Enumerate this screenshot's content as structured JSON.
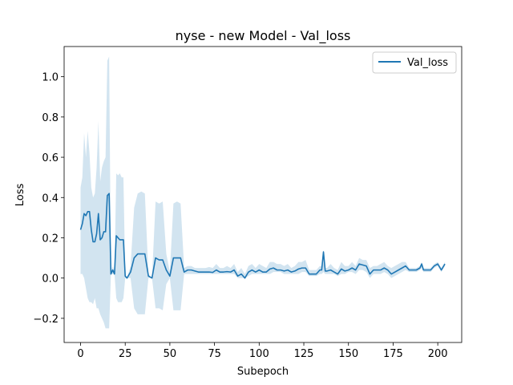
{
  "chart_data": {
    "type": "line",
    "title": "nyse - new Model - Val_loss",
    "xlabel": "Subepoch",
    "ylabel": "Loss",
    "xlim": [
      -9.2,
      213.4
    ],
    "ylim": [
      -0.32,
      1.15
    ],
    "xticks": [
      0,
      25,
      50,
      75,
      100,
      125,
      150,
      175,
      200
    ],
    "yticks": [
      -0.2,
      0.0,
      0.2,
      0.4,
      0.6,
      0.8,
      1.0
    ],
    "ytick_labels": [
      "−0.2",
      "0.0",
      "0.2",
      "0.4",
      "0.6",
      "0.8",
      "1.0"
    ],
    "grid": false,
    "legend": {
      "position": "top-right",
      "entries": [
        "Val_loss"
      ]
    },
    "colors": {
      "line": "#1f77b4",
      "band": "#1f77b4"
    },
    "series": [
      {
        "name": "Val_loss",
        "x": [
          0,
          1,
          2,
          3,
          4,
          5,
          6,
          7,
          8,
          9,
          10,
          11,
          12,
          13,
          14,
          15,
          16,
          17,
          18,
          19,
          20,
          21,
          22,
          23,
          24,
          25,
          26,
          28,
          30,
          32,
          34,
          36,
          38,
          40,
          42,
          44,
          46,
          48,
          50,
          52,
          54,
          56,
          58,
          60,
          62,
          64,
          66,
          68,
          70,
          72,
          74,
          76,
          78,
          80,
          82,
          84,
          86,
          88,
          90,
          92,
          94,
          96,
          98,
          100,
          102,
          104,
          106,
          108,
          110,
          112,
          114,
          116,
          118,
          120,
          122,
          124,
          126,
          128,
          130,
          132,
          134,
          135,
          136,
          137,
          138,
          140,
          142,
          144,
          146,
          148,
          150,
          152,
          154,
          156,
          158,
          160,
          162,
          164,
          166,
          168,
          170,
          172,
          174,
          176,
          178,
          180,
          182,
          184,
          186,
          188,
          190,
          191,
          192,
          194,
          196,
          198,
          200,
          202,
          204
        ],
        "y": [
          0.24,
          0.27,
          0.32,
          0.31,
          0.33,
          0.33,
          0.24,
          0.18,
          0.18,
          0.22,
          0.32,
          0.19,
          0.2,
          0.23,
          0.23,
          0.41,
          0.42,
          0.02,
          0.04,
          0.02,
          0.21,
          0.2,
          0.19,
          0.19,
          0.19,
          0.01,
          0.0,
          0.03,
          0.1,
          0.12,
          0.12,
          0.12,
          0.01,
          0.0,
          0.1,
          0.09,
          0.09,
          0.04,
          0.01,
          0.1,
          0.1,
          0.1,
          0.03,
          0.04,
          0.04,
          0.035,
          0.03,
          0.03,
          0.03,
          0.03,
          0.028,
          0.04,
          0.03,
          0.03,
          0.032,
          0.03,
          0.04,
          0.01,
          0.02,
          0.0,
          0.03,
          0.04,
          0.03,
          0.04,
          0.03,
          0.03,
          0.045,
          0.05,
          0.04,
          0.04,
          0.035,
          0.04,
          0.03,
          0.035,
          0.045,
          0.05,
          0.05,
          0.02,
          0.02,
          0.02,
          0.04,
          0.04,
          0.13,
          0.035,
          0.035,
          0.04,
          0.03,
          0.02,
          0.045,
          0.035,
          0.04,
          0.05,
          0.04,
          0.07,
          0.065,
          0.06,
          0.02,
          0.04,
          0.04,
          0.04,
          0.05,
          0.04,
          0.02,
          0.03,
          0.04,
          0.05,
          0.06,
          0.04,
          0.04,
          0.04,
          0.05,
          0.07,
          0.04,
          0.04,
          0.04,
          0.06,
          0.07,
          0.04,
          0.07
        ],
        "lower": [
          0.02,
          0.02,
          0.0,
          -0.05,
          -0.1,
          -0.12,
          -0.12,
          -0.13,
          -0.1,
          -0.15,
          -0.15,
          -0.18,
          -0.2,
          -0.22,
          -0.25,
          -0.25,
          -0.25,
          0.02,
          0.02,
          0.02,
          -0.1,
          -0.12,
          -0.12,
          -0.12,
          -0.1,
          0.0,
          0.0,
          0.0,
          -0.15,
          -0.18,
          -0.18,
          -0.18,
          0.0,
          0.0,
          -0.15,
          -0.15,
          -0.16,
          -0.03,
          0.0,
          -0.16,
          -0.16,
          -0.16,
          0.02,
          0.02,
          0.02,
          0.02,
          0.02,
          0.02,
          0.02,
          0.02,
          0.02,
          0.02,
          0.02,
          0.02,
          0.02,
          0.02,
          0.02,
          0.0,
          0.0,
          0.0,
          0.01,
          0.02,
          0.02,
          0.02,
          0.02,
          0.02,
          0.02,
          0.03,
          0.03,
          0.03,
          0.02,
          0.02,
          0.02,
          0.02,
          0.02,
          0.03,
          0.03,
          0.01,
          0.01,
          0.01,
          0.02,
          0.02,
          0.03,
          0.02,
          0.02,
          0.02,
          0.02,
          0.01,
          0.02,
          0.02,
          0.03,
          0.03,
          0.02,
          0.04,
          0.04,
          0.03,
          0.0,
          0.02,
          0.02,
          0.02,
          0.03,
          0.02,
          0.0,
          0.01,
          0.02,
          0.03,
          0.04,
          0.03,
          0.03,
          0.03,
          0.04,
          0.05,
          0.03,
          0.03,
          0.03,
          0.05,
          0.06,
          0.03,
          0.06
        ],
        "upper": [
          0.45,
          0.5,
          0.72,
          0.6,
          0.73,
          0.62,
          0.45,
          0.4,
          0.42,
          0.55,
          0.78,
          0.48,
          0.55,
          0.58,
          0.6,
          1.08,
          1.1,
          0.03,
          0.06,
          0.03,
          0.52,
          0.51,
          0.52,
          0.5,
          0.5,
          0.02,
          0.0,
          0.06,
          0.35,
          0.42,
          0.43,
          0.42,
          0.02,
          0.0,
          0.38,
          0.37,
          0.38,
          0.12,
          0.03,
          0.37,
          0.38,
          0.37,
          0.05,
          0.06,
          0.06,
          0.05,
          0.05,
          0.05,
          0.05,
          0.055,
          0.05,
          0.07,
          0.05,
          0.05,
          0.06,
          0.05,
          0.07,
          0.03,
          0.05,
          0.02,
          0.06,
          0.07,
          0.05,
          0.07,
          0.06,
          0.05,
          0.08,
          0.08,
          0.07,
          0.07,
          0.06,
          0.07,
          0.05,
          0.06,
          0.08,
          0.08,
          0.09,
          0.04,
          0.04,
          0.04,
          0.06,
          0.06,
          0.14,
          0.05,
          0.05,
          0.07,
          0.05,
          0.04,
          0.08,
          0.06,
          0.06,
          0.08,
          0.06,
          0.1,
          0.09,
          0.09,
          0.05,
          0.06,
          0.06,
          0.07,
          0.08,
          0.06,
          0.05,
          0.06,
          0.07,
          0.08,
          0.08,
          0.05,
          0.05,
          0.05,
          0.06,
          0.08,
          0.05,
          0.05,
          0.05,
          0.07,
          0.08,
          0.05,
          0.08
        ]
      }
    ]
  }
}
